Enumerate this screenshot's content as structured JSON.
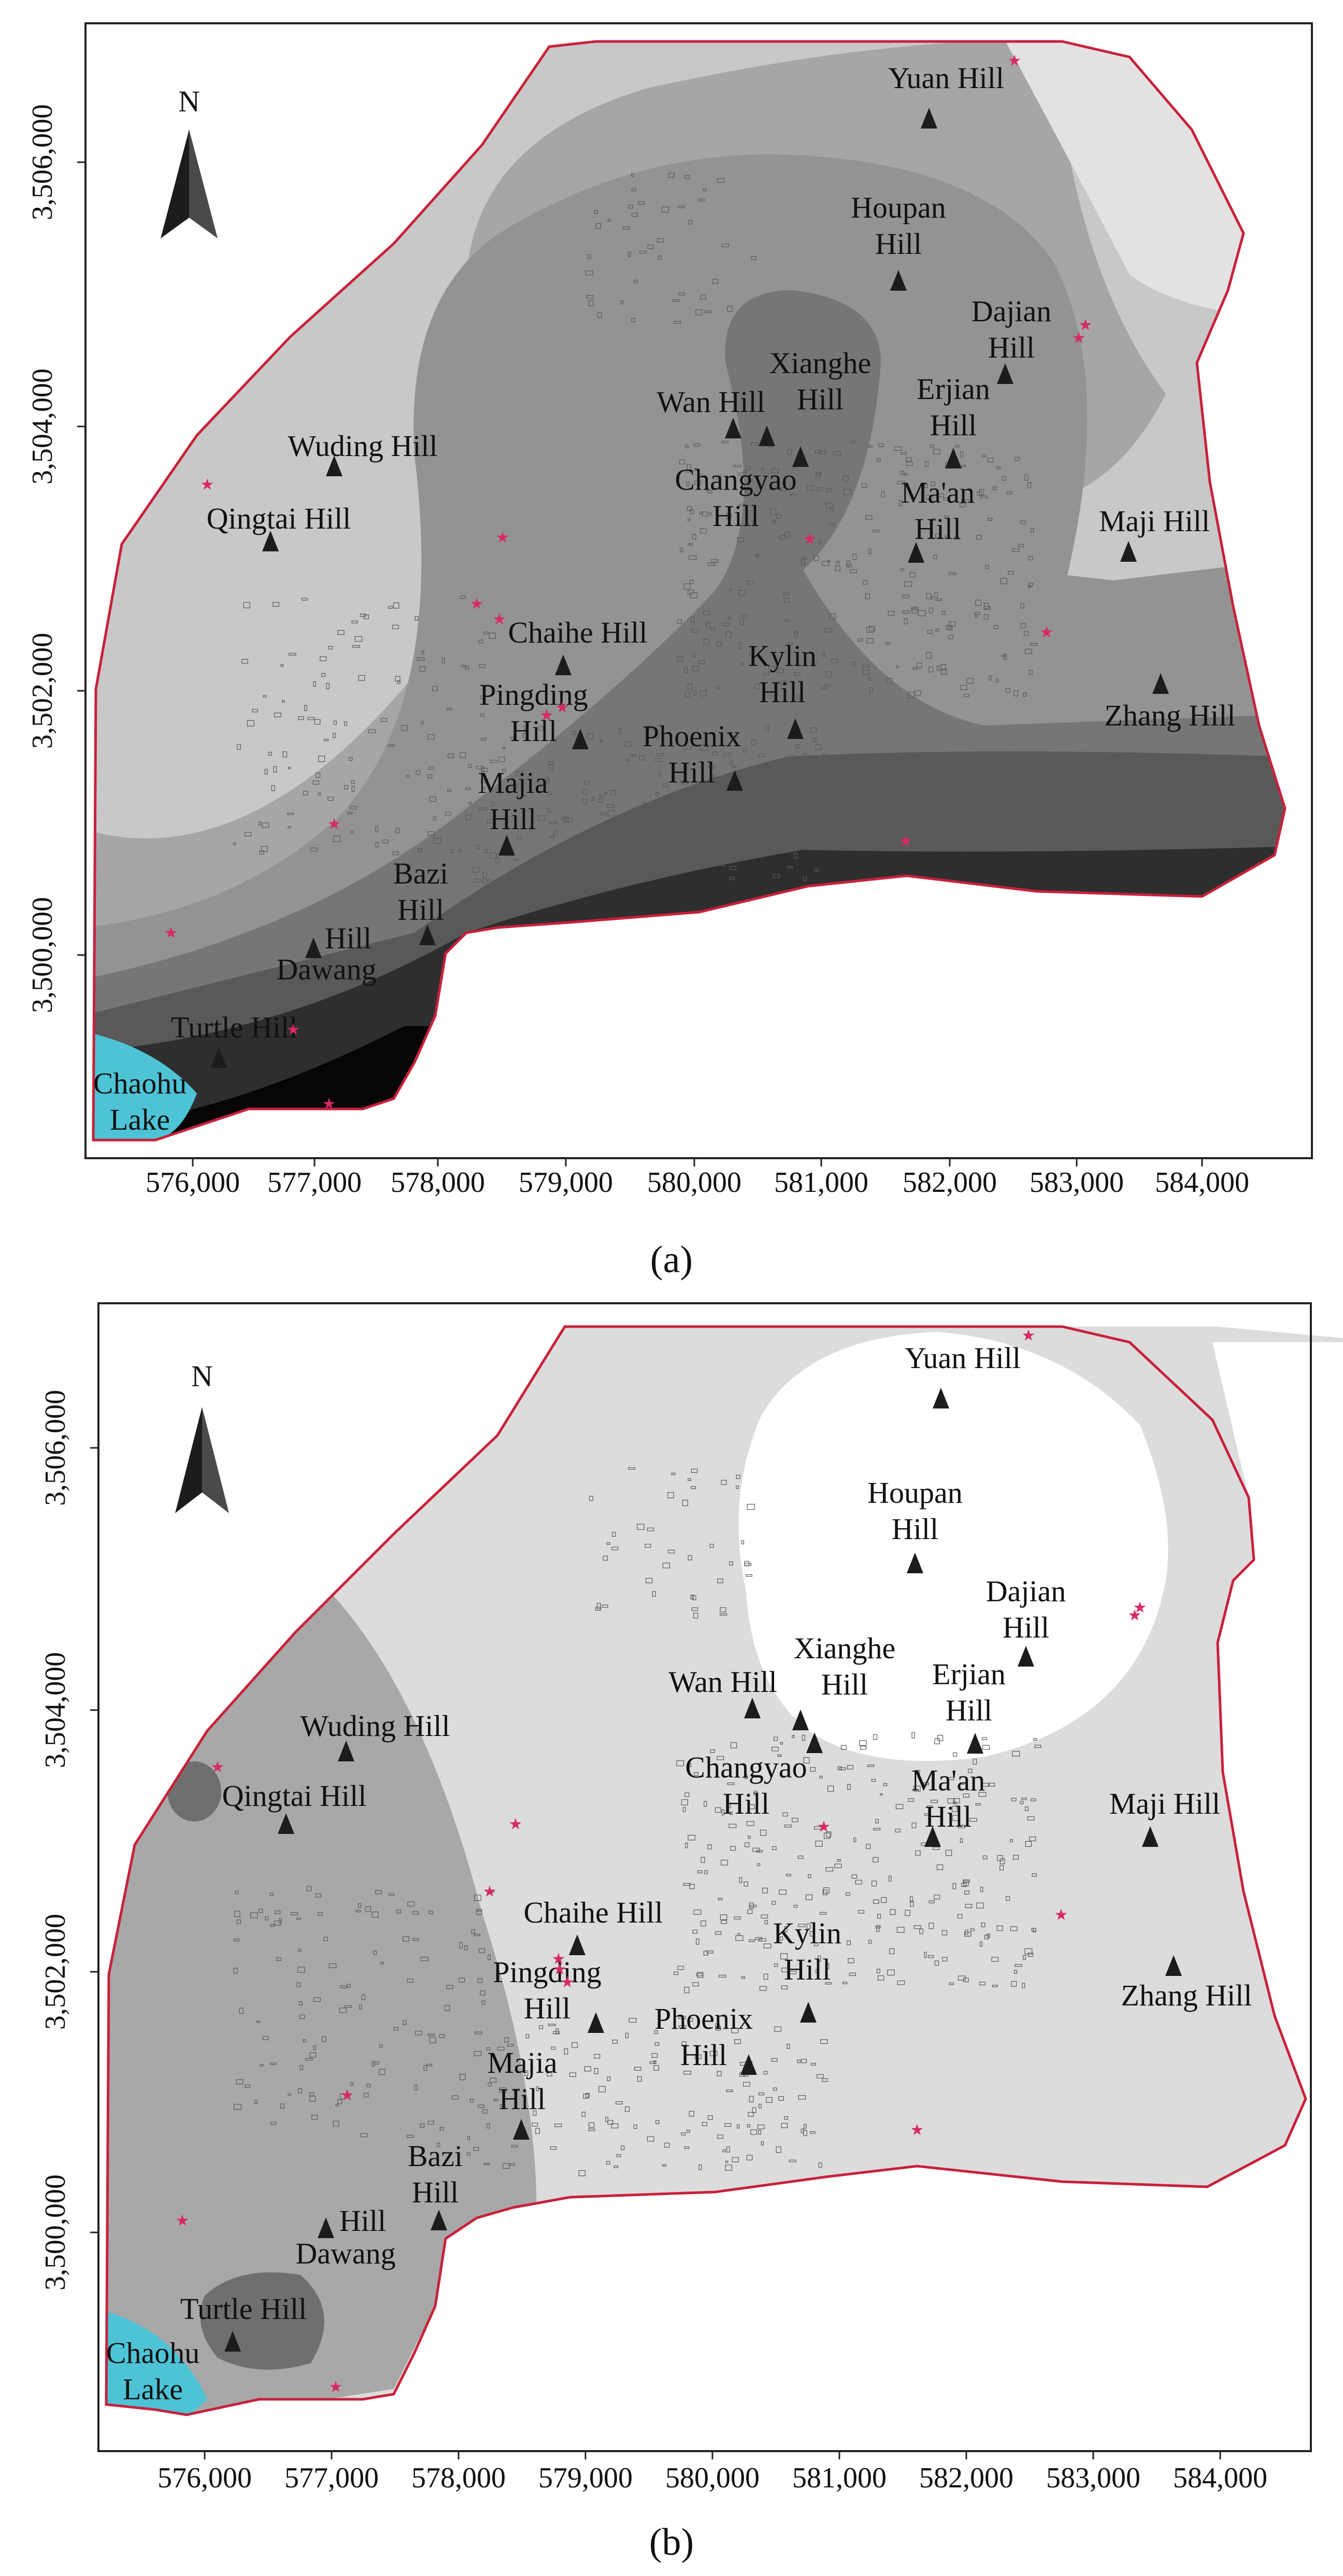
{
  "figure": {
    "north_label": "N",
    "lake_line1": "Chaohu",
    "lake_line2": "Lake",
    "x_ticks": [
      "576,000",
      "577,000",
      "578,000",
      "579,000",
      "580,000",
      "581,000",
      "582,000",
      "583,000",
      "584,000"
    ],
    "y_ticks": [
      "3,506,000",
      "3,504,000",
      "3,502,000",
      "3,500,000"
    ],
    "colors": {
      "boundary": "#c8213a",
      "lake": "#4ec3d6",
      "marker": "#d62a66",
      "triangle": "#1c1c1c"
    }
  },
  "panels": [
    {
      "caption": "(a)",
      "hills": [
        {
          "lines": [
            "Yuan Hill"
          ]
        },
        {
          "lines": [
            "Houpan",
            "Hill"
          ]
        },
        {
          "lines": [
            "Dajian",
            "Hill"
          ]
        },
        {
          "lines": [
            "Wan Hill"
          ]
        },
        {
          "lines": [
            "Xianghe",
            "Hill"
          ]
        },
        {
          "lines": [
            "Erjian",
            "Hill"
          ]
        },
        {
          "lines": [
            "Wuding Hill"
          ]
        },
        {
          "lines": [
            "Changyao",
            "Hill"
          ]
        },
        {
          "lines": [
            "Ma'an",
            "Hill"
          ]
        },
        {
          "lines": [
            "Maji Hill"
          ]
        },
        {
          "lines": [
            "Qingtai Hill"
          ]
        },
        {
          "lines": [
            "Chaihe Hill"
          ]
        },
        {
          "lines": [
            "Kylin",
            "Hill"
          ]
        },
        {
          "lines": [
            "Pingding",
            "Hill"
          ]
        },
        {
          "lines": [
            "Zhang Hill"
          ]
        },
        {
          "lines": [
            "Phoenix",
            "Hill"
          ]
        },
        {
          "lines": [
            "Majia",
            "Hill"
          ]
        },
        {
          "lines": [
            "Bazi",
            "Hill"
          ]
        },
        {
          "lines": [
            "Hill",
            "Dawang"
          ]
        },
        {
          "lines": [
            "Turtle Hill"
          ]
        }
      ]
    },
    {
      "caption": "(b)",
      "hills": [
        {
          "lines": [
            "Yuan Hill"
          ]
        },
        {
          "lines": [
            "Houpan",
            "Hill"
          ]
        },
        {
          "lines": [
            "Dajian",
            "Hill"
          ]
        },
        {
          "lines": [
            "Xianghe",
            "Hill"
          ]
        },
        {
          "lines": [
            "Wan Hill"
          ]
        },
        {
          "lines": [
            "Erjian",
            "Hill"
          ]
        },
        {
          "lines": [
            "Wuding Hill"
          ]
        },
        {
          "lines": [
            "Changyao",
            "Hill"
          ]
        },
        {
          "lines": [
            "Ma'an",
            "Hill"
          ]
        },
        {
          "lines": [
            "Qingtai Hill"
          ]
        },
        {
          "lines": [
            "Maji Hill"
          ]
        },
        {
          "lines": [
            "Chaihe Hill"
          ]
        },
        {
          "lines": [
            "Kylin",
            "Hill"
          ]
        },
        {
          "lines": [
            "Pingding",
            "Hill"
          ]
        },
        {
          "lines": [
            "Zhang Hill"
          ]
        },
        {
          "lines": [
            "Phoenix",
            "Hill"
          ]
        },
        {
          "lines": [
            "Majia",
            "Hill"
          ]
        },
        {
          "lines": [
            "Bazi",
            "Hill"
          ]
        },
        {
          "lines": [
            "Hill",
            "Dawang"
          ]
        },
        {
          "lines": [
            "Turtle Hill"
          ]
        }
      ]
    }
  ]
}
